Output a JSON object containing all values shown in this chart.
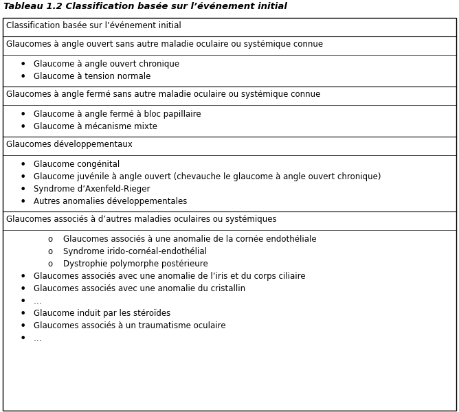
{
  "title": "Tableau 1.2 Classification basée sur l’événement initial",
  "title_bold": true,
  "title_italic": true,
  "title_fontsize": 9.5,
  "font_size": 8.5,
  "bg_color": "#ffffff",
  "border_color": "#000000",
  "text_color": "#000000",
  "row1_text": "Classification basée sur l’événement initial",
  "row2_text": "Glaucomes à angle ouvert sans autre maladie oculaire ou systémique connue",
  "row3_items": [
    "Glaucome à angle ouvert chronique",
    "Glaucome à tension normale"
  ],
  "row4_text": "Glaucomes à angle fermé sans autre maladie oculaire ou systémique connue",
  "row5_items": [
    "Glaucome à angle fermé à bloc papillaire",
    "Glaucome à mécanisme mixte"
  ],
  "row6_text": "Glaucomes développementaux",
  "row7_items": [
    "Glaucome congénital",
    "Glaucome juvénile à angle ouvert (chevauche le glaucome à angle ouvert chronique)",
    "Syndrome d’Axenfeld-Rieger",
    "Autres anomalies développementales"
  ],
  "row8_text": "Glaucomes associés à d’autres maladies oculaires ou systémiques",
  "row9_sub_items": [
    "Glaucomes associés à une anomalie de la cornée endothéliale",
    "Syndrome irido-cornéal-endothélial",
    "Dystrophie polymorphe postérieure"
  ],
  "row9_bullet_items": [
    "Glaucomes associés avec une anomalie de l’iris et du corps ciliaire",
    "Glaucomes associés avec une anomalie du cristallin",
    "…",
    "Glaucome induit par les stéroïdes",
    "Glaucomes associés à un traumatisme oculaire",
    "…"
  ]
}
